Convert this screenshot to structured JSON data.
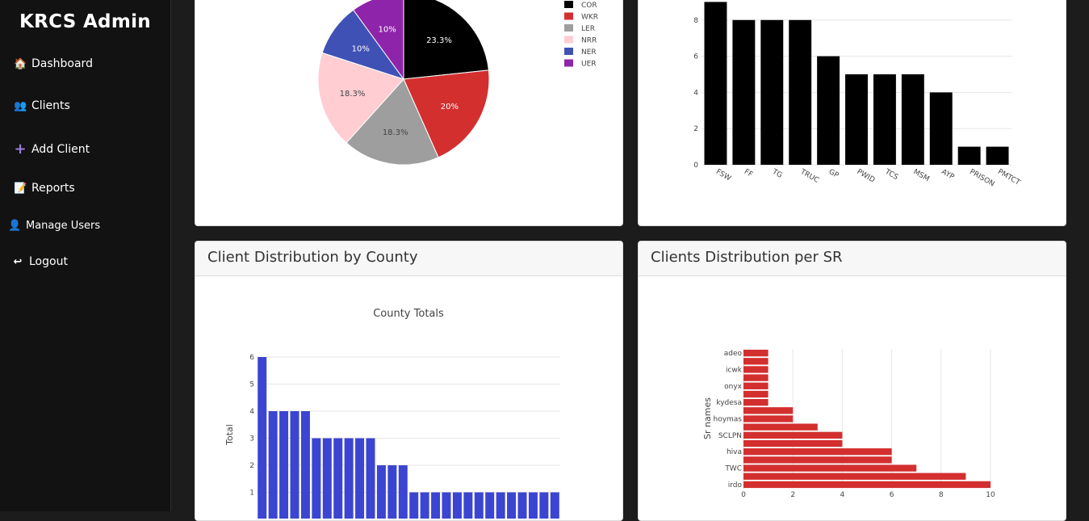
{
  "sidebar": {
    "brand": "KRCS Admin",
    "items": [
      {
        "label": "Dashboard",
        "icon": "house-icon"
      },
      {
        "label": "Clients",
        "icon": "people-icon"
      },
      {
        "label": "Add Client",
        "icon": "plus-icon"
      },
      {
        "label": "Reports",
        "icon": "document-icon"
      },
      {
        "label": "Manage Users",
        "icon": "user-icon"
      },
      {
        "label": "Logout",
        "icon": "return-arrow-icon"
      }
    ]
  },
  "panels": {
    "county": {
      "title": "Client Distribution by County"
    },
    "sr": {
      "title": "Clients Distribution per SR"
    }
  },
  "chart_data": [
    {
      "type": "pie",
      "labels": [
        "COR",
        "WKR",
        "LER",
        "NRR",
        "NER",
        "UER"
      ],
      "values": [
        23.3,
        20,
        18.3,
        18.3,
        10,
        10
      ],
      "value_labels": [
        "23.3%",
        "20%",
        "18.3%",
        "18.3%",
        "10%",
        "10%"
      ],
      "colors": [
        "#000000",
        "#d32f2f",
        "#9e9e9e",
        "#ffcdd2",
        "#3f51b5",
        "#8e24aa"
      ],
      "legend": "right"
    },
    {
      "type": "bar",
      "categories": [
        "FSW",
        "FF",
        "TG",
        "TRUC",
        "GP",
        "PWID",
        "TCS",
        "MSM",
        "AYP",
        "PRISON",
        "PMTCT"
      ],
      "values": [
        9,
        8,
        8,
        8,
        6,
        5,
        5,
        5,
        4,
        1,
        1
      ],
      "yticks": [
        0,
        2,
        4,
        6,
        8
      ],
      "color": "#000000"
    },
    {
      "type": "bar",
      "title": "County Totals",
      "ylabel": "Total",
      "values": [
        6,
        4,
        4,
        4,
        4,
        3,
        3,
        3,
        3,
        3,
        3,
        2,
        2,
        2,
        1,
        1,
        1,
        1,
        1,
        1,
        1,
        1,
        1,
        1,
        1,
        1,
        1,
        1
      ],
      "yticks": [
        1,
        2,
        3,
        4,
        5,
        6
      ],
      "color": "#3b45d1"
    },
    {
      "type": "bar",
      "orientation": "horizontal",
      "ylabel": "Sr names",
      "categories": [
        "irdo",
        "",
        "TWC",
        "",
        "hiva",
        "",
        "SCLPN",
        "",
        "hoymas",
        "",
        "kydesa",
        "",
        "onyx",
        "",
        "icwk",
        "",
        "adeo"
      ],
      "values": [
        10,
        9,
        7,
        6,
        6,
        4,
        4,
        3,
        2,
        2,
        1,
        1,
        1,
        1,
        1,
        1,
        1
      ],
      "xticks": [
        0,
        2,
        4,
        6,
        8,
        10
      ],
      "color": "#d32f2f"
    }
  ]
}
